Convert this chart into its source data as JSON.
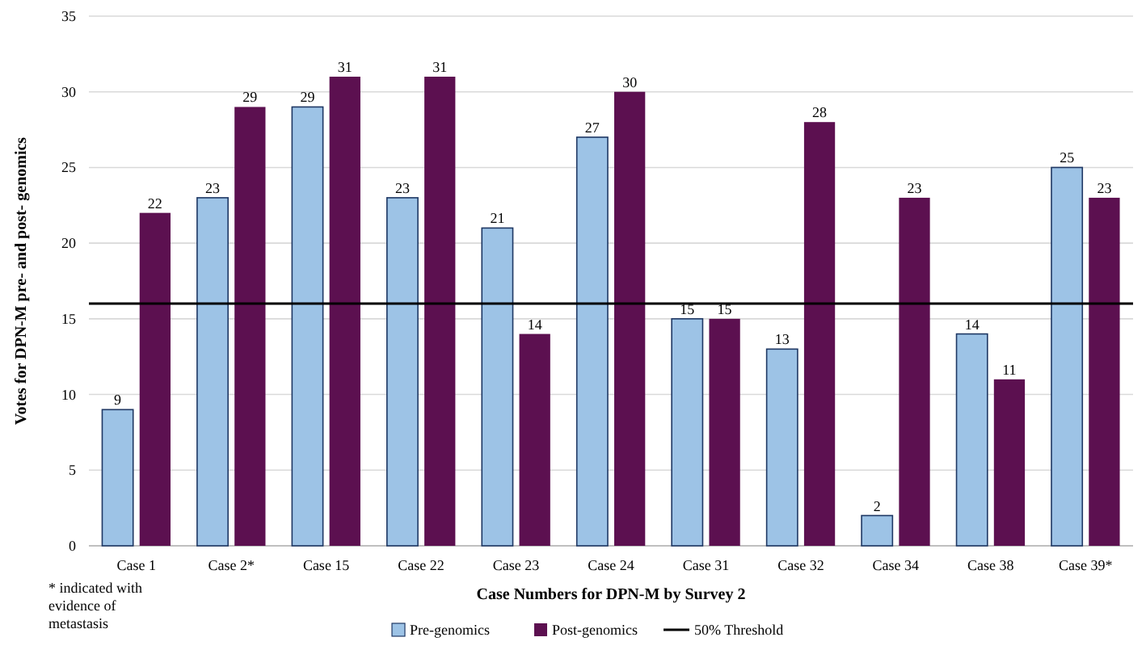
{
  "chart_data": {
    "type": "bar",
    "xlabel": "Case Numbers for DPN-M by Survey 2",
    "ylabel": "Votes for DPN-M pre- and post- genomics",
    "categories": [
      "Case 1",
      "Case 2*",
      "Case 15",
      "Case 22",
      "Case 23",
      "Case 24",
      "Case 31",
      "Case 32",
      "Case 34",
      "Case 38",
      "Case 39*"
    ],
    "series": [
      {
        "name": "Pre-genomics",
        "color": "#9dc3e6",
        "values": [
          9,
          23,
          29,
          23,
          21,
          27,
          15,
          13,
          2,
          14,
          25
        ]
      },
      {
        "name": "Post-genomics",
        "color": "#5c1050",
        "values": [
          22,
          29,
          31,
          31,
          14,
          30,
          15,
          28,
          23,
          11,
          23
        ]
      }
    ],
    "ylim": [
      0,
      35
    ],
    "yticks": [
      0,
      5,
      10,
      15,
      20,
      25,
      30,
      35
    ],
    "grid": "y",
    "data_labels": true,
    "legend": "bottom",
    "ref_lines": [
      {
        "axis": "y",
        "value": 16,
        "label": "50% Threshold",
        "color": "#000000"
      }
    ],
    "annotations": [
      "* indicated with evidence of metastasis"
    ]
  }
}
